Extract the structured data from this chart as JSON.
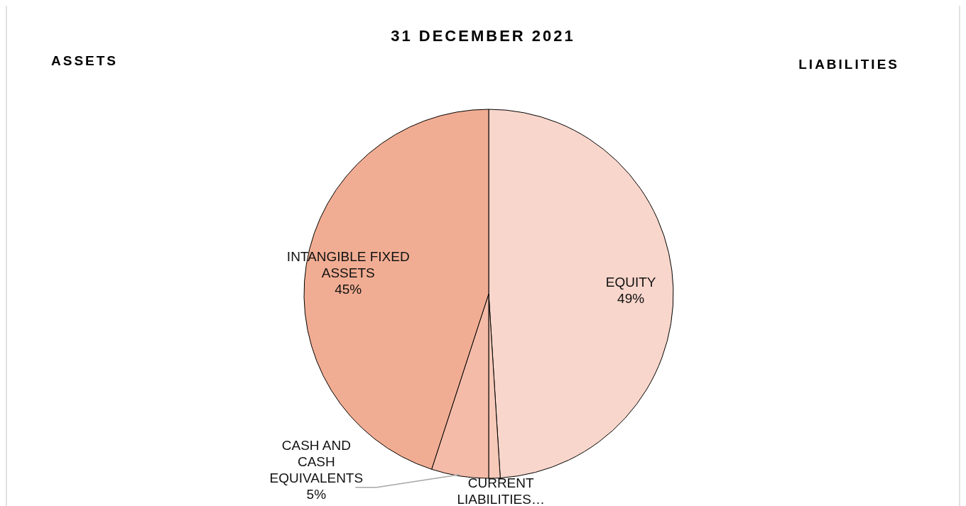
{
  "chart_data": {
    "type": "pie",
    "title": "31 DECEMBER 2021",
    "annotations": [
      "ASSETS",
      "LIABILITIES"
    ],
    "categories": [
      "EQUITY",
      "CURRENT LIABILITIES…",
      "CASH AND CASH EQUIVALENTS",
      "INTANGIBLE FIXED ASSETS"
    ],
    "values": [
      49,
      1,
      5,
      45
    ],
    "value_labels": [
      "49%",
      null,
      "5%",
      "45%"
    ],
    "colors": [
      "#f8d6cb",
      "#f6c9b9",
      "#f4bba8",
      "#f1ad93"
    ]
  }
}
